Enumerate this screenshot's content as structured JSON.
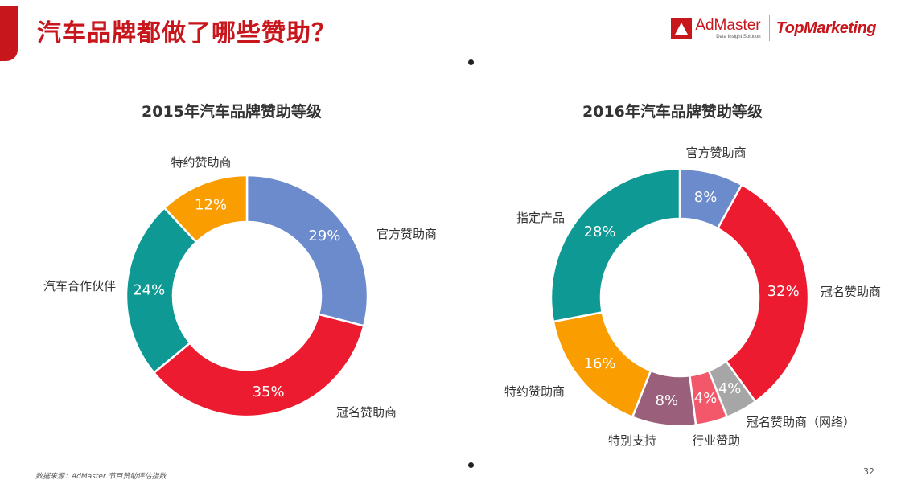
{
  "page": {
    "title": "汽车品牌都做了哪些赞助？",
    "accent_color": "#c8161d",
    "source": "数据来源：AdMaster 节目赞助评估指数",
    "page_number": "32"
  },
  "brand": {
    "admaster_name": "AdMaster",
    "admaster_sub": "Data Insight Solution",
    "topmarketing": "TopMarketing"
  },
  "chart_data": [
    {
      "type": "pie",
      "title": "2015年汽车品牌赞助等级",
      "slices": [
        {
          "label": "官方赞助商",
          "value": 29,
          "display": "29%",
          "color": "#6b8bcd"
        },
        {
          "label": "冠名赞助商",
          "value": 35,
          "display": "35%",
          "color": "#ec1b30"
        },
        {
          "label": "汽车合作伙伴",
          "value": 24,
          "display": "24%",
          "color": "#0e9994"
        },
        {
          "label": "特约赞助商",
          "value": 12,
          "display": "12%",
          "color": "#f99d00"
        }
      ]
    },
    {
      "type": "pie",
      "title": "2016年汽车品牌赞助等级",
      "slices": [
        {
          "label": "官方赞助商",
          "value": 8,
          "display": "8%",
          "color": "#6b8bcd"
        },
        {
          "label": "冠名赞助商",
          "value": 32,
          "display": "32%",
          "color": "#ec1b30"
        },
        {
          "label": "冠名赞助商（网络）",
          "value": 4,
          "display": "4%",
          "color": "#a6a6a6"
        },
        {
          "label": "行业赞助",
          "value": 4,
          "display": "4%",
          "color": "#f3586a"
        },
        {
          "label": "特别支持",
          "value": 8,
          "display": "8%",
          "color": "#9a5f7a"
        },
        {
          "label": "特约赞助商",
          "value": 16,
          "display": "16%",
          "color": "#f99d00"
        },
        {
          "label": "指定产品",
          "value": 28,
          "display": "28%",
          "color": "#0e9994"
        }
      ]
    }
  ]
}
